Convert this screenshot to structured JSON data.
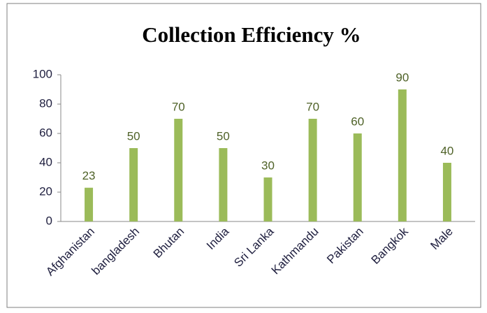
{
  "chart_data": {
    "type": "bar",
    "title": "Collection Efficiency %",
    "categories": [
      "Afghanistan",
      "bangladesh",
      "Bhutan",
      "India",
      "Sri Lanka",
      "Kathmandu",
      "Pakistan",
      "Bangkok",
      "Male"
    ],
    "values": [
      23,
      50,
      70,
      50,
      30,
      70,
      60,
      90,
      40
    ],
    "color": "#9bbb59",
    "ylim": [
      0,
      100
    ],
    "yticks": [
      0,
      20,
      40,
      60,
      80,
      100
    ],
    "grid": false
  }
}
